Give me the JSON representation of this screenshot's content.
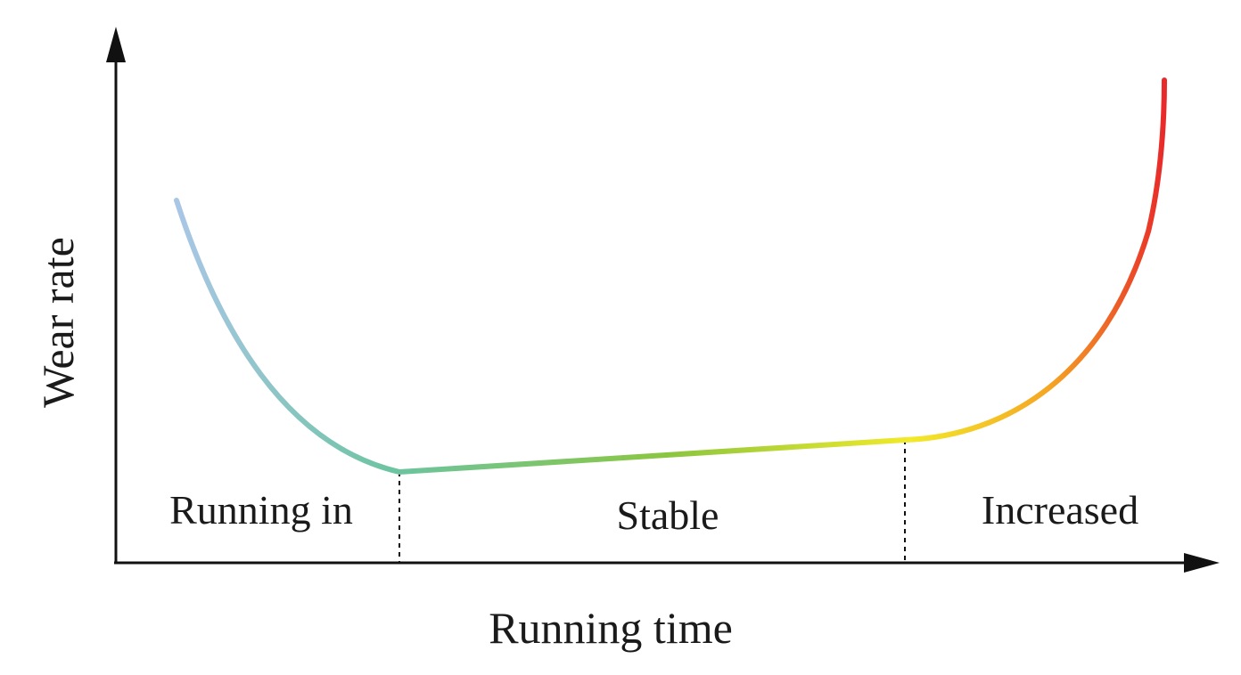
{
  "axes": {
    "x_title": "Running time",
    "y_title": "Wear rate"
  },
  "phases": [
    {
      "label": "Running in"
    },
    {
      "label": "Stable"
    },
    {
      "label": "Increased"
    }
  ],
  "curve_colors": {
    "start": "#a9c6e6",
    "running_in_end": "#6cc4a0",
    "stable_mid": "#8cc63f",
    "stable_end": "#f2ea2a",
    "increased_mid": "#f5a623",
    "end": "#e8262a"
  },
  "axis_color": "#111111"
}
